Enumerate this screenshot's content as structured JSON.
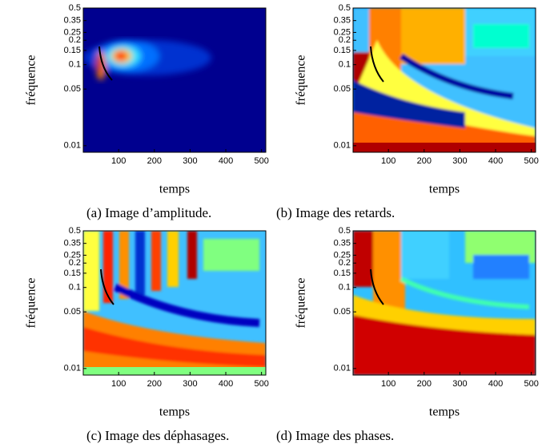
{
  "figure": {
    "panels": [
      {
        "caption": "(a) Image d’amplitude.",
        "xlabel": "temps",
        "ylabel": "fréquence",
        "xlim": [
          1,
          512
        ],
        "ylim": [
          0.0083,
          0.5
        ],
        "yscale": "log",
        "xticks": [
          100,
          200,
          300,
          400,
          500
        ],
        "yticks": [
          0.01,
          0.05,
          0.1,
          0.15,
          0.2,
          0.25,
          0.35,
          0.5
        ]
      },
      {
        "caption": "(b) Image des retards.",
        "xlabel": "temps",
        "ylabel": "fréquence",
        "xlim": [
          1,
          512
        ],
        "ylim": [
          0.0083,
          0.5
        ],
        "yscale": "log",
        "xticks": [
          100,
          200,
          300,
          400,
          500
        ],
        "yticks": [
          0.01,
          0.05,
          0.1,
          0.15,
          0.2,
          0.25,
          0.35,
          0.5
        ]
      },
      {
        "caption": "(c) Image des déphasages.",
        "xlabel": "temps",
        "ylabel": "fréquence",
        "xlim": [
          1,
          512
        ],
        "ylim": [
          0.0083,
          0.5
        ],
        "yscale": "log",
        "xticks": [
          100,
          200,
          300,
          400,
          500
        ],
        "yticks": [
          0.01,
          0.05,
          0.1,
          0.15,
          0.2,
          0.25,
          0.35,
          0.5
        ]
      },
      {
        "caption": "(d) Image des phases.",
        "xlabel": "temps",
        "ylabel": "fréquence",
        "xlim": [
          1,
          512
        ],
        "ylim": [
          0.0083,
          0.5
        ],
        "yscale": "log",
        "xticks": [
          100,
          200,
          300,
          400,
          500
        ],
        "yticks": [
          0.01,
          0.05,
          0.1,
          0.15,
          0.2,
          0.25,
          0.35,
          0.5
        ]
      }
    ]
  }
}
